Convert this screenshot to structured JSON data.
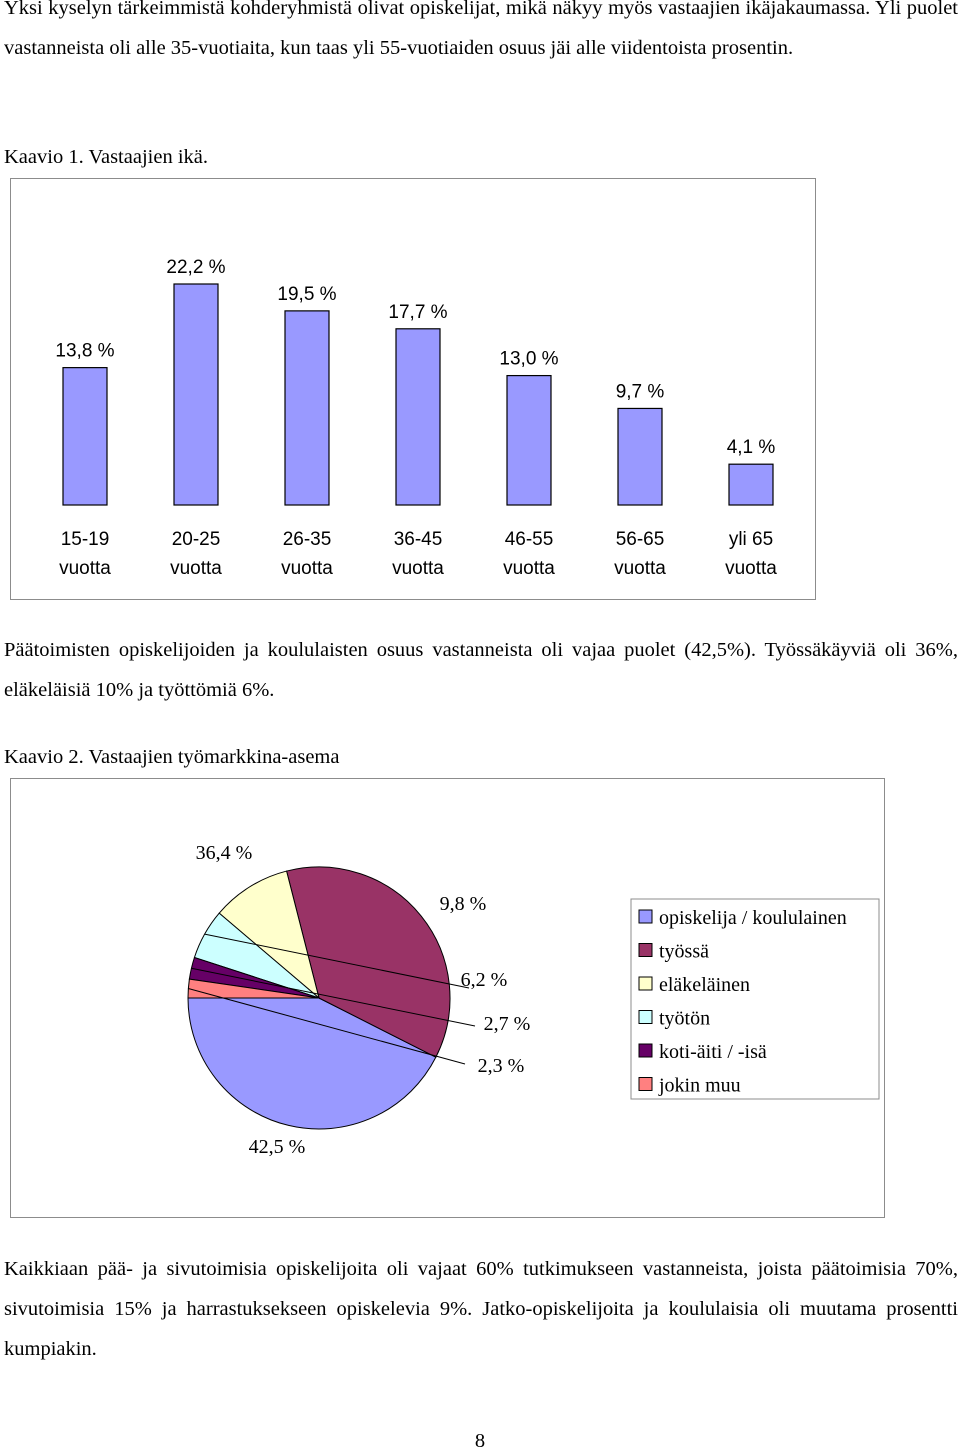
{
  "paragraphs": {
    "p1": "Yksi kyselyn tärkeimmistä kohderyhmistä olivat opiskelijat, mikä näkyy myös vastaajien ikäjakaumassa. Yli puolet vastanneista oli alle 35-vuotiaita, kun taas yli 55-vuotiaiden osuus jäi alle viidentoista prosentin.",
    "p2": "Päätoimisten opiskelijoiden ja koululaisten osuus vastanneista oli vajaa puolet (42,5%). Työssäkäyviä oli 36%, eläkeläisiä 10% ja työttömiä 6%.",
    "p3": "Kaikkiaan pää- ja sivutoimisia opiskelijoita oli vajaat 60% tutkimukseen vastanneista, joista päätoimisia 70%, sivutoimisia 15% ja harrastuksekseen opiskelevia 9%. Jatko-opiskelijoita ja koululaisia oli muutama prosentti kumpiakin."
  },
  "captions": {
    "chart1": "Kaavio 1. Vastaajien ikä.",
    "chart2": "Kaavio 2. Vastaajien työmarkkina-asema"
  },
  "page_number": "8",
  "chart_data": [
    {
      "type": "bar",
      "categories": [
        [
          "15-19",
          "vuotta"
        ],
        [
          "20-25",
          "vuotta"
        ],
        [
          "26-35",
          "vuotta"
        ],
        [
          "36-45",
          "vuotta"
        ],
        [
          "46-55",
          "vuotta"
        ],
        [
          "56-65",
          "vuotta"
        ],
        [
          "yli 65",
          "vuotta"
        ]
      ],
      "values": [
        13.8,
        22.2,
        19.5,
        17.7,
        13.0,
        9.7,
        4.1
      ],
      "labels": [
        "13,8 %",
        "22,2 %",
        "19,5 %",
        "17,7 %",
        "13,0 %",
        "9,7 %",
        "4,1 %"
      ],
      "bar_color": "#9999ff",
      "ylim": [
        0,
        22.2
      ],
      "grid": false,
      "legend": "none"
    },
    {
      "type": "pie",
      "labels": [
        "42,5 %",
        "36,4 %",
        "9,8 %",
        "6,2 %",
        "2,7 %",
        "2,3 %"
      ],
      "legend": [
        "opiskelija / koululainen",
        "työssä",
        "eläkeläinen",
        "työtön",
        "koti-äiti / -isä",
        "jokin muu"
      ],
      "values": [
        42.5,
        36.4,
        9.8,
        6.2,
        2.7,
        2.3
      ],
      "colors": [
        "#9999ff",
        "#993366",
        "#ffffcc",
        "#ccffff",
        "#660066",
        "#ff8080"
      ],
      "legend_position": "right"
    }
  ]
}
